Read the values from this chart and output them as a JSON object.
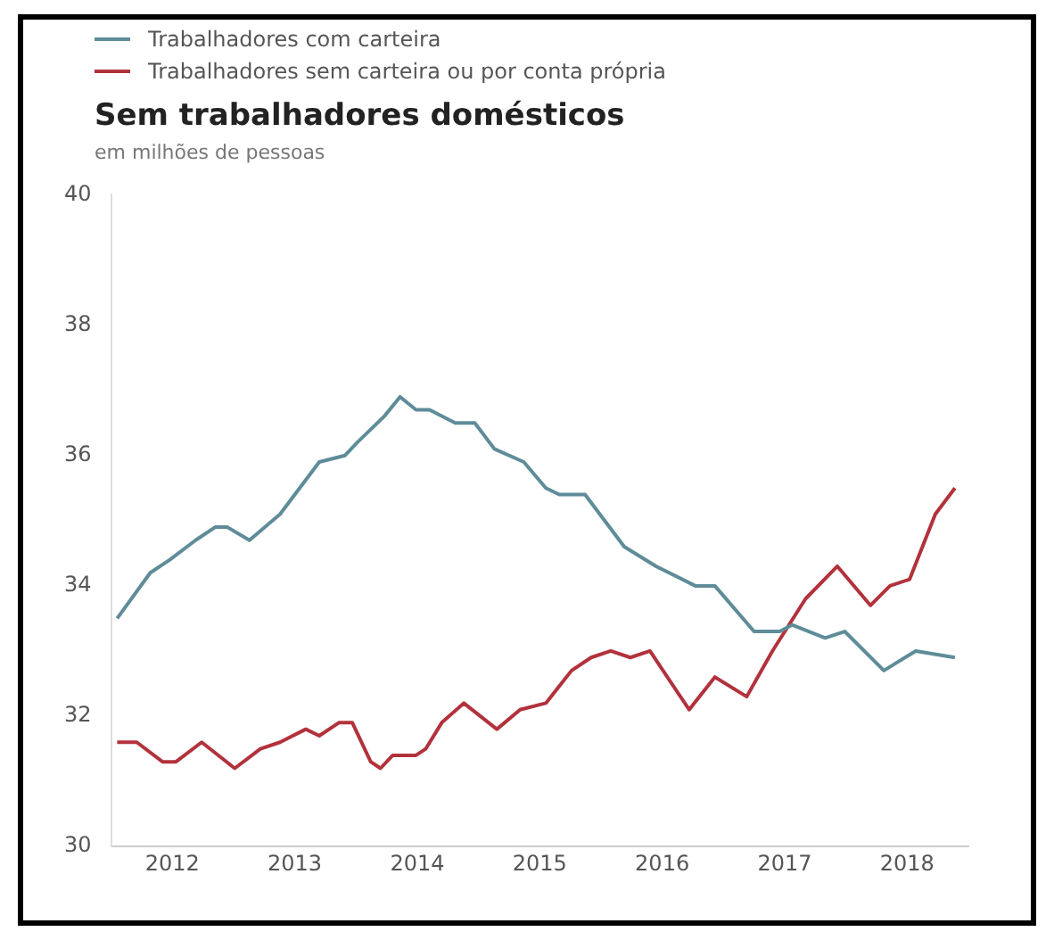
{
  "chart_data": {
    "type": "line",
    "title": "Sem trabalhadores domésticos",
    "subtitle": "em milhões de pessoas",
    "legend": "top left",
    "grid": false,
    "marker": "none",
    "line_style": "solid",
    "xlim": [
      2012,
      2019
    ],
    "xticks": [
      {
        "value": 2012.5,
        "label": "2012"
      },
      {
        "value": 2013.5,
        "label": "2013"
      },
      {
        "value": 2014.5,
        "label": "2014"
      },
      {
        "value": 2015.5,
        "label": "2015"
      },
      {
        "value": 2016.5,
        "label": "2016"
      },
      {
        "value": 2017.5,
        "label": "2017"
      },
      {
        "value": 2018.5,
        "label": "2018"
      }
    ],
    "ylim": [
      30,
      40
    ],
    "yticks": [
      30,
      32,
      34,
      36,
      38,
      40
    ],
    "series": [
      {
        "name": "Trabalhadores com carteira",
        "color": "#5f8c99",
        "x": [
          2012.05,
          2012.32,
          2012.48,
          2012.69,
          2012.85,
          2012.95,
          2013.13,
          2013.38,
          2013.7,
          2013.91,
          2014.01,
          2014.23,
          2014.36,
          2014.49,
          2014.6,
          2014.81,
          2014.97,
          2015.13,
          2015.37,
          2015.55,
          2015.66,
          2015.87,
          2016.19,
          2016.45,
          2016.77,
          2016.93,
          2017.25,
          2017.46,
          2017.56,
          2017.83,
          2017.99,
          2018.31,
          2018.57,
          2018.89
        ],
        "values": [
          33.5,
          34.2,
          34.4,
          34.7,
          34.9,
          34.9,
          34.7,
          35.1,
          35.9,
          36.0,
          36.2,
          36.6,
          36.9,
          36.7,
          36.7,
          36.5,
          36.5,
          36.1,
          35.9,
          35.5,
          35.4,
          35.4,
          34.6,
          34.3,
          34.0,
          34.0,
          33.3,
          33.3,
          33.4,
          33.2,
          33.3,
          32.7,
          33.0,
          32.9
        ]
      },
      {
        "name": "Trabalhadores sem carteira ou por conta própria",
        "color": "#b2323c",
        "x": [
          2012.05,
          2012.21,
          2012.42,
          2012.53,
          2012.74,
          2013.01,
          2013.22,
          2013.38,
          2013.59,
          2013.7,
          2013.86,
          2013.97,
          2014.12,
          2014.2,
          2014.3,
          2014.49,
          2014.57,
          2014.7,
          2014.88,
          2015.15,
          2015.34,
          2015.55,
          2015.76,
          2015.92,
          2016.08,
          2016.24,
          2016.4,
          2016.72,
          2016.93,
          2017.19,
          2017.4,
          2017.67,
          2017.93,
          2018.2,
          2018.36,
          2018.52,
          2018.73,
          2018.89
        ],
        "values": [
          31.6,
          31.6,
          31.3,
          31.3,
          31.6,
          31.2,
          31.5,
          31.6,
          31.8,
          31.7,
          31.9,
          31.9,
          31.3,
          31.2,
          31.4,
          31.4,
          31.5,
          31.9,
          32.2,
          31.8,
          32.1,
          32.2,
          32.7,
          32.9,
          33.0,
          32.9,
          33.0,
          32.1,
          32.6,
          32.3,
          33.0,
          33.8,
          34.3,
          33.7,
          34.0,
          34.1,
          35.1,
          35.5
        ]
      }
    ]
  }
}
